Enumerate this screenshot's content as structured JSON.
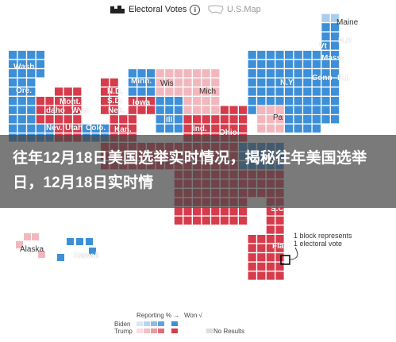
{
  "tabs": {
    "electoral_votes": "Electoral Votes",
    "us_map": "U.S.Map",
    "info": "i"
  },
  "state_labels": {
    "maine": "Maine",
    "nh": "N.H",
    "vt": "Vt",
    "mass": "Mass",
    "ny": "N.Y",
    "conn": "Conn",
    "ri": "R.I.",
    "wash": "Wash",
    "ore": "Ore.",
    "idaho": "daho",
    "mont": "Mont.",
    "wyo": "Wyo.",
    "nev": "Nev.",
    "utah": "Utah",
    "colo": "Colo.",
    "nd": "N.D.",
    "sd": "S.D.",
    "neb": "Neb.",
    "kan": "Kan.",
    "minn": "Minn.",
    "iowa": "Iowa",
    "wis": "Wis",
    "ill": "Ill",
    "mich": "Mich",
    "ind": "Ind.",
    "ohio": "Ohio",
    "pa": "Pa",
    "sc": "S.C",
    "fla": "Fla.",
    "alaska": "Alaska",
    "hawaii": "Hawaii"
  },
  "banner": {
    "headline": "往年12月18日美国选举实时情况，揭秘往年美国选举日，12月18日实时情"
  },
  "annotation": {
    "line1": "1 block represents",
    "line2": "1 electoral vote"
  },
  "legend": {
    "reporting_label": "Reporting % →",
    "won_label": "Won √",
    "biden_label": "Biden",
    "trump_label": "Trump",
    "no_results_label": "No Results"
  },
  "colors": {
    "biden": "#3c8fd8",
    "trump": "#d63c4c",
    "biden_light": "#a9cdef",
    "trump_light": "#f2b7bd",
    "no_results": "#dddddd"
  }
}
